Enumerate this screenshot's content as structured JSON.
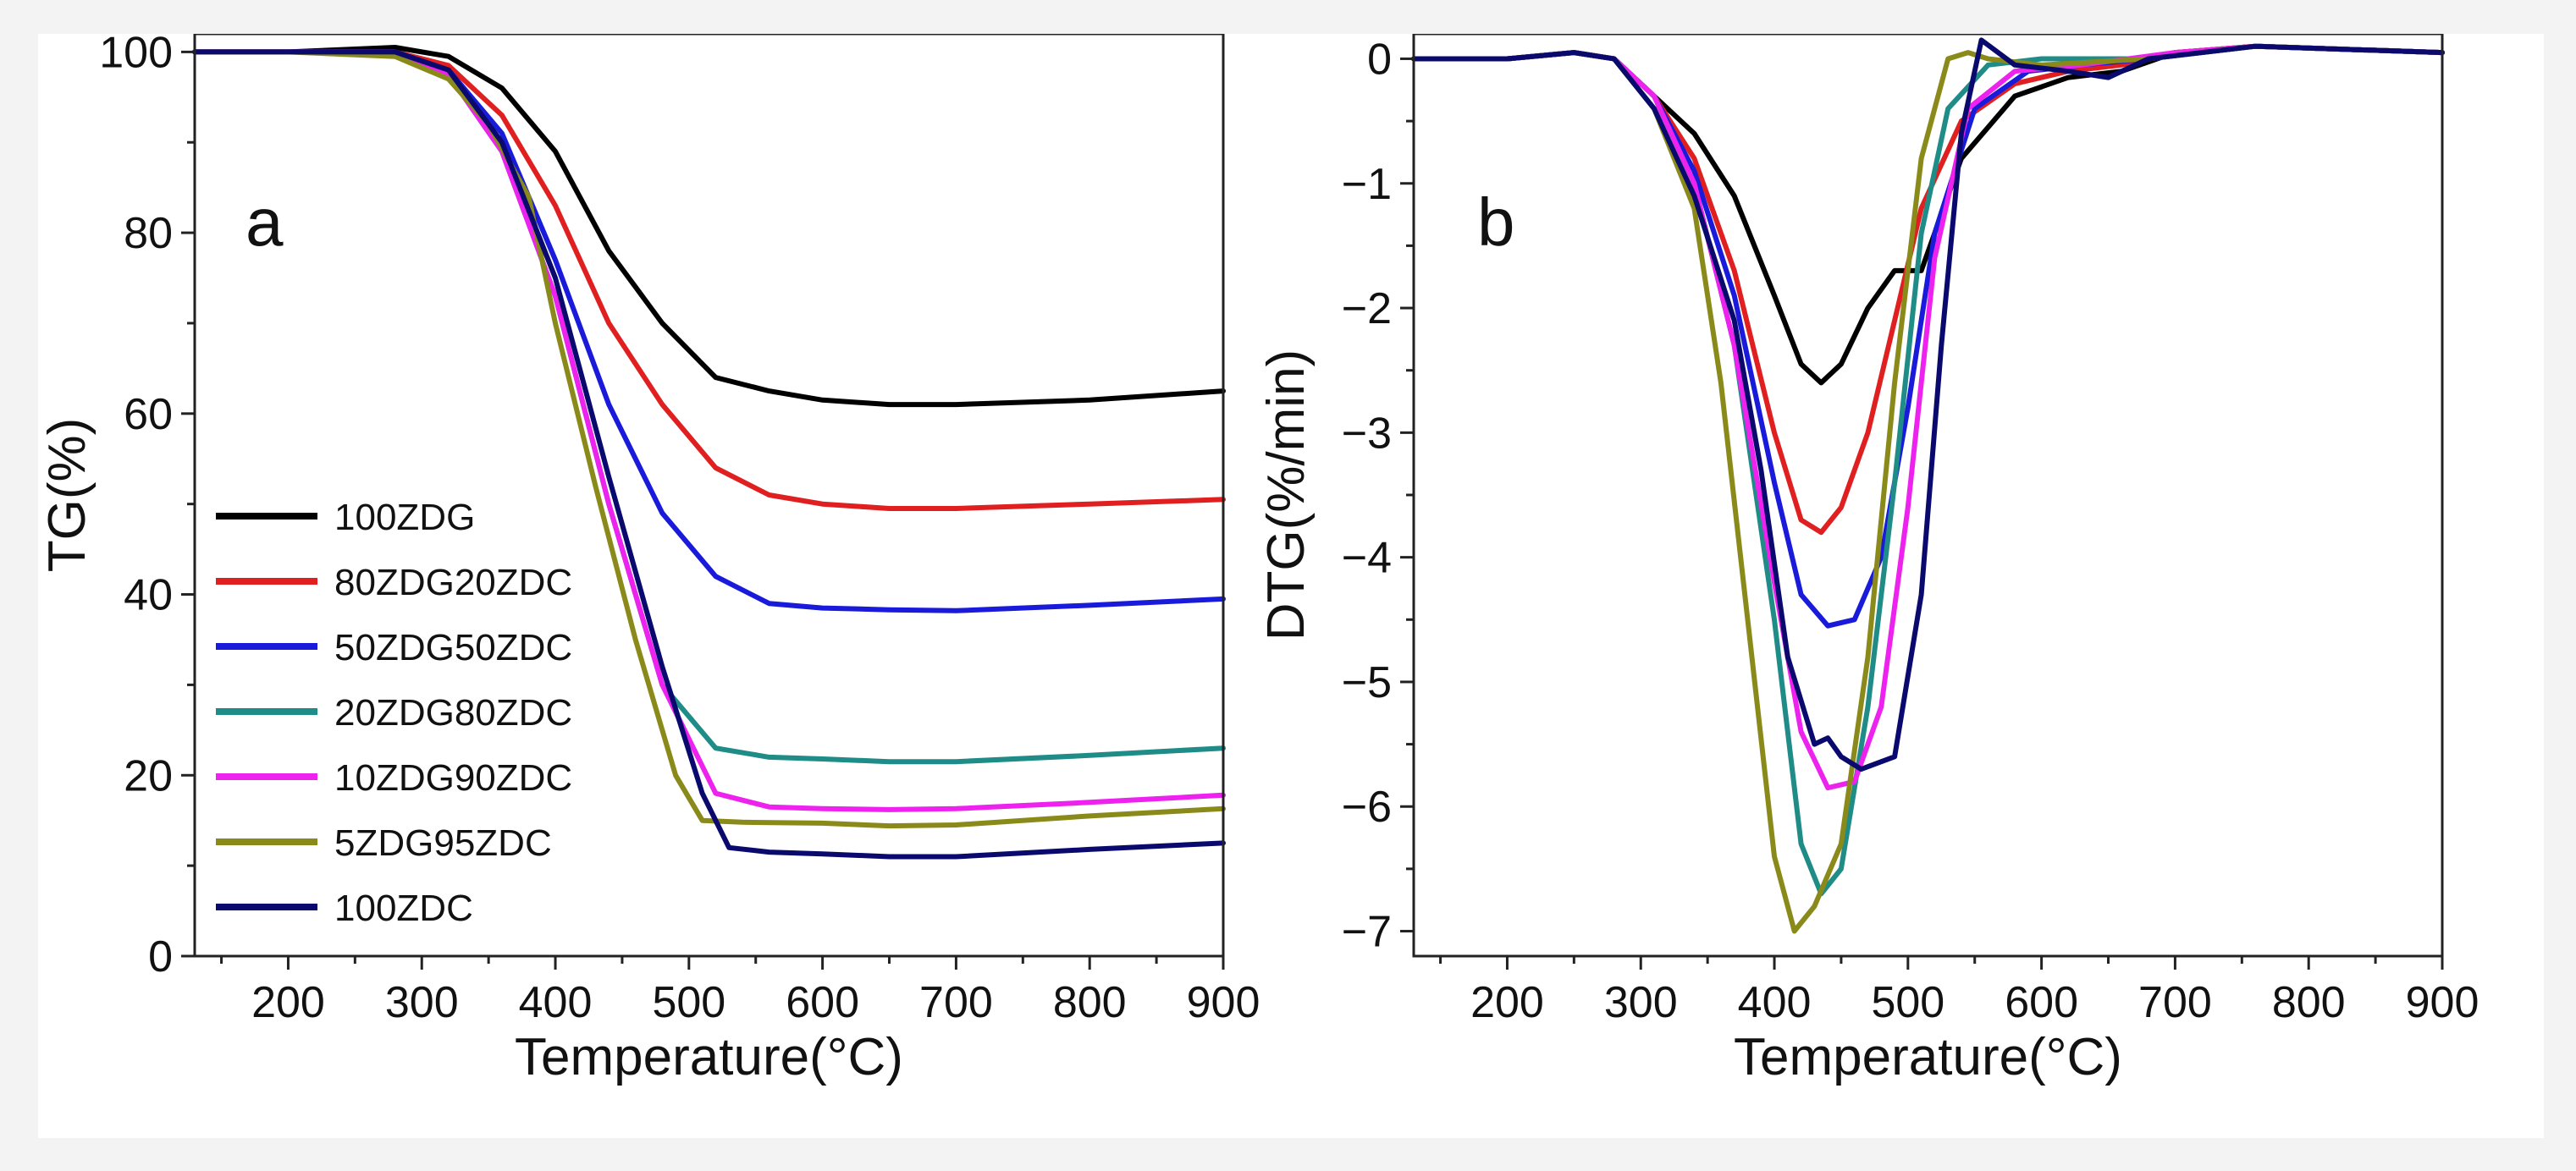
{
  "chart_data": [
    {
      "type": "line",
      "panel_label": "a",
      "xlabel": "Temperature(°C)",
      "ylabel": "TG(%)",
      "xlim": [
        130,
        900
      ],
      "ylim": [
        0,
        102
      ],
      "xticks": [
        200,
        300,
        400,
        500,
        600,
        700,
        800,
        900
      ],
      "yticks": [
        0,
        20,
        40,
        60,
        80,
        100
      ],
      "grid": false,
      "legend_placement": "left-bottom",
      "series": [
        {
          "name": "100ZDG",
          "color": "#000000",
          "x": [
            130,
            200,
            280,
            320,
            360,
            400,
            440,
            480,
            520,
            560,
            600,
            650,
            700,
            800,
            900
          ],
          "y": [
            100,
            100,
            100.5,
            99.5,
            96,
            89,
            78,
            70,
            64,
            62.5,
            61.5,
            61,
            61,
            61.5,
            62.5
          ]
        },
        {
          "name": "80ZDG20ZDC",
          "color": "#e02020",
          "x": [
            130,
            200,
            280,
            320,
            360,
            400,
            440,
            480,
            520,
            560,
            600,
            650,
            700,
            800,
            900
          ],
          "y": [
            100,
            100,
            100,
            98.5,
            93,
            83,
            70,
            61,
            54,
            51,
            50,
            49.5,
            49.5,
            50,
            50.5
          ]
        },
        {
          "name": "50ZDG50ZDC",
          "color": "#1a1adb",
          "x": [
            130,
            200,
            280,
            320,
            360,
            400,
            440,
            480,
            520,
            560,
            600,
            650,
            700,
            800,
            900
          ],
          "y": [
            100,
            100,
            100,
            98,
            91,
            77,
            61,
            49,
            42,
            39,
            38.5,
            38.3,
            38.2,
            38.8,
            39.5
          ]
        },
        {
          "name": "20ZDG80ZDC",
          "color": "#1f8c87",
          "x": [
            130,
            200,
            280,
            320,
            360,
            400,
            440,
            480,
            520,
            560,
            600,
            650,
            700,
            800,
            900
          ],
          "y": [
            100,
            100,
            100,
            97.5,
            89,
            73,
            50,
            30,
            23,
            22,
            21.8,
            21.5,
            21.5,
            22.2,
            23
          ]
        },
        {
          "name": "10ZDG90ZDC",
          "color": "#ee22ee",
          "x": [
            130,
            200,
            280,
            320,
            360,
            400,
            440,
            480,
            520,
            560,
            600,
            650,
            700,
            800,
            900
          ],
          "y": [
            100,
            100,
            100,
            97.5,
            89,
            73,
            50,
            30,
            18,
            16.5,
            16.3,
            16.2,
            16.3,
            17,
            17.8
          ]
        },
        {
          "name": "5ZDG95ZDC",
          "color": "#8a8a1a",
          "x": [
            130,
            200,
            280,
            320,
            350,
            380,
            400,
            430,
            460,
            490,
            510,
            540,
            600,
            650,
            700,
            800,
            900
          ],
          "y": [
            100,
            100,
            99.5,
            97,
            92,
            84,
            70,
            52,
            35,
            20,
            15,
            14.8,
            14.7,
            14.4,
            14.5,
            15.5,
            16.3
          ]
        },
        {
          "name": "100ZDC",
          "color": "#0a0a6e",
          "x": [
            130,
            200,
            280,
            320,
            360,
            400,
            440,
            480,
            510,
            530,
            560,
            600,
            650,
            700,
            800,
            900
          ],
          "y": [
            100,
            100,
            100,
            98,
            90,
            75,
            53,
            32,
            18,
            12,
            11.5,
            11.3,
            11,
            11,
            11.8,
            12.5
          ]
        }
      ]
    },
    {
      "type": "line",
      "panel_label": "b",
      "xlabel": "Temperature(°C)",
      "ylabel": "DTG(%/min)",
      "xlim": [
        130,
        900
      ],
      "ylim": [
        -7.2,
        0.2
      ],
      "xticks": [
        200,
        300,
        400,
        500,
        600,
        700,
        800,
        900
      ],
      "yticks": [
        0,
        -1,
        -2,
        -3,
        -4,
        -5,
        -6,
        -7
      ],
      "grid": false,
      "series": [
        {
          "name": "100ZDG",
          "color": "#000000",
          "x": [
            130,
            200,
            250,
            280,
            310,
            340,
            370,
            400,
            420,
            435,
            450,
            470,
            490,
            510,
            540,
            580,
            620,
            660,
            700,
            760,
            900
          ],
          "y": [
            0,
            0,
            0.05,
            0,
            -0.3,
            -0.6,
            -1.1,
            -1.9,
            -2.45,
            -2.6,
            -2.45,
            -2.0,
            -1.7,
            -1.7,
            -0.8,
            -0.3,
            -0.15,
            -0.1,
            0.05,
            0.1,
            0.05
          ]
        },
        {
          "name": "80ZDG20ZDC",
          "color": "#e02020",
          "x": [
            130,
            200,
            250,
            280,
            310,
            340,
            370,
            400,
            420,
            435,
            450,
            470,
            490,
            510,
            540,
            580,
            620,
            660,
            700,
            760,
            900
          ],
          "y": [
            0,
            0,
            0.05,
            0,
            -0.3,
            -0.8,
            -1.7,
            -3.0,
            -3.7,
            -3.8,
            -3.6,
            -3.0,
            -2.1,
            -1.2,
            -0.5,
            -0.2,
            -0.1,
            -0.05,
            0.05,
            0.1,
            0.05
          ]
        },
        {
          "name": "50ZDG50ZDC",
          "color": "#1a1adb",
          "x": [
            130,
            200,
            250,
            280,
            310,
            340,
            370,
            400,
            420,
            440,
            460,
            480,
            500,
            520,
            550,
            590,
            630,
            680,
            760,
            900
          ],
          "y": [
            0,
            0,
            0.05,
            0,
            -0.3,
            -0.9,
            -1.9,
            -3.4,
            -4.3,
            -4.55,
            -4.5,
            -4.0,
            -2.8,
            -1.4,
            -0.4,
            -0.1,
            -0.05,
            0,
            0.1,
            0.05
          ]
        },
        {
          "name": "20ZDG80ZDC",
          "color": "#1f8c87",
          "x": [
            130,
            200,
            250,
            280,
            310,
            340,
            370,
            400,
            420,
            435,
            450,
            470,
            490,
            510,
            530,
            560,
            600,
            680,
            760,
            900
          ],
          "y": [
            0,
            0,
            0.05,
            0,
            -0.3,
            -1.0,
            -2.3,
            -4.5,
            -6.3,
            -6.7,
            -6.5,
            -5.2,
            -3.4,
            -1.4,
            -0.4,
            -0.05,
            0,
            0,
            0.1,
            0.05
          ]
        },
        {
          "name": "10ZDG90ZDC",
          "color": "#ee22ee",
          "x": [
            130,
            200,
            250,
            280,
            310,
            340,
            370,
            400,
            420,
            440,
            460,
            480,
            500,
            520,
            545,
            580,
            630,
            700,
            760,
            900
          ],
          "y": [
            0,
            0,
            0.05,
            0,
            -0.3,
            -1.0,
            -2.3,
            -4.2,
            -5.4,
            -5.85,
            -5.8,
            -5.2,
            -3.6,
            -1.6,
            -0.4,
            -0.1,
            -0.05,
            0.05,
            0.1,
            0.05
          ]
        },
        {
          "name": "5ZDG95ZDC",
          "color": "#8a8a1a",
          "x": [
            130,
            200,
            250,
            280,
            310,
            340,
            360,
            380,
            400,
            415,
            430,
            450,
            470,
            490,
            510,
            530,
            545,
            560,
            600,
            680,
            760,
            900
          ],
          "y": [
            0,
            0,
            0.05,
            0,
            -0.4,
            -1.2,
            -2.6,
            -4.5,
            -6.4,
            -7.0,
            -6.8,
            -6.3,
            -4.8,
            -2.6,
            -0.8,
            0,
            0.05,
            0,
            -0.05,
            0,
            0.1,
            0.05
          ]
        },
        {
          "name": "100ZDC",
          "color": "#0a0a6e",
          "x": [
            130,
            200,
            250,
            280,
            310,
            340,
            370,
            390,
            410,
            430,
            440,
            450,
            465,
            490,
            510,
            525,
            540,
            555,
            580,
            620,
            650,
            680,
            760,
            900
          ],
          "y": [
            0,
            0,
            0.05,
            0,
            -0.4,
            -1.1,
            -2.1,
            -3.3,
            -4.8,
            -5.5,
            -5.45,
            -5.6,
            -5.7,
            -5.6,
            -4.3,
            -2.3,
            -0.6,
            0.15,
            -0.05,
            -0.1,
            -0.15,
            0,
            0.1,
            0.05
          ]
        }
      ]
    }
  ]
}
